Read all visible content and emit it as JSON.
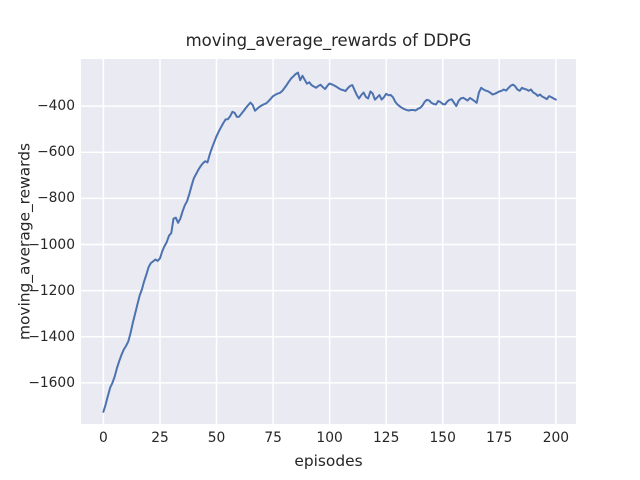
{
  "title": "moving_average_rewards of DDPG",
  "axes": {
    "xlabel": "episodes",
    "ylabel": "moving_average_rewards",
    "x_tick_labels": [
      "0",
      "25",
      "50",
      "75",
      "100",
      "125",
      "150",
      "175",
      "200"
    ],
    "y_tick_labels": [
      "−400",
      "−600",
      "−800",
      "−1000",
      "−1200",
      "−1400",
      "−1600"
    ]
  },
  "colors": {
    "line": "#4c72b0",
    "plot_background": "#eaeaf2",
    "grid": "#ffffff",
    "text": "#262626",
    "figure_background": "#ffffff"
  },
  "chart_data": {
    "type": "line",
    "title": "moving_average_rewards of DDPG",
    "xlabel": "episodes",
    "ylabel": "moving_average_rewards",
    "x_ticks": [
      0,
      25,
      50,
      75,
      100,
      125,
      150,
      175,
      200
    ],
    "y_ticks": [
      -400,
      -600,
      -800,
      -1000,
      -1200,
      -1400,
      -1600
    ],
    "xlim": [
      -9.9,
      208.9
    ],
    "ylim": [
      -1778,
      -196
    ],
    "grid": true,
    "legend": false,
    "series": [
      {
        "name": "moving_average_rewards",
        "color": "#4c72b0",
        "x_start": 0,
        "x_step": 1,
        "values": [
          -1725,
          -1693,
          -1656,
          -1620,
          -1600,
          -1572,
          -1535,
          -1506,
          -1478,
          -1455,
          -1440,
          -1420,
          -1385,
          -1340,
          -1300,
          -1262,
          -1222,
          -1195,
          -1160,
          -1130,
          -1098,
          -1080,
          -1073,
          -1065,
          -1071,
          -1060,
          -1030,
          -1007,
          -990,
          -962,
          -950,
          -888,
          -884,
          -906,
          -888,
          -856,
          -830,
          -812,
          -780,
          -745,
          -712,
          -694,
          -676,
          -660,
          -648,
          -639,
          -644,
          -610,
          -581,
          -555,
          -531,
          -510,
          -492,
          -474,
          -458,
          -457,
          -445,
          -425,
          -429,
          -447,
          -446,
          -433,
          -421,
          -408,
          -396,
          -385,
          -396,
          -420,
          -412,
          -403,
          -397,
          -392,
          -388,
          -379,
          -368,
          -357,
          -351,
          -346,
          -343,
          -335,
          -322,
          -309,
          -294,
          -280,
          -271,
          -261,
          -255,
          -288,
          -269,
          -286,
          -303,
          -297,
          -309,
          -315,
          -321,
          -313,
          -308,
          -318,
          -326,
          -312,
          -302,
          -306,
          -311,
          -316,
          -323,
          -328,
          -331,
          -335,
          -323,
          -313,
          -309,
          -330,
          -352,
          -367,
          -352,
          -341,
          -360,
          -367,
          -337,
          -345,
          -372,
          -363,
          -352,
          -372,
          -362,
          -347,
          -353,
          -352,
          -362,
          -381,
          -393,
          -401,
          -408,
          -413,
          -417,
          -419,
          -417,
          -417,
          -419,
          -412,
          -408,
          -398,
          -382,
          -373,
          -376,
          -386,
          -391,
          -393,
          -378,
          -383,
          -391,
          -393,
          -380,
          -373,
          -371,
          -386,
          -400,
          -377,
          -367,
          -364,
          -370,
          -376,
          -365,
          -371,
          -378,
          -386,
          -341,
          -321,
          -328,
          -333,
          -336,
          -342,
          -350,
          -347,
          -342,
          -337,
          -334,
          -328,
          -333,
          -322,
          -312,
          -307,
          -314,
          -328,
          -334,
          -321,
          -325,
          -328,
          -334,
          -328,
          -341,
          -347,
          -356,
          -350,
          -359,
          -364,
          -370,
          -357,
          -361,
          -367,
          -372
        ]
      }
    ]
  }
}
